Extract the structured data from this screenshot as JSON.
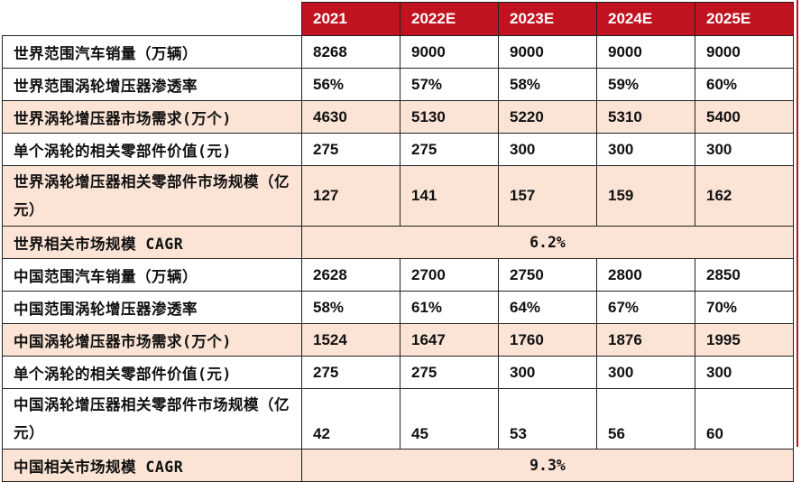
{
  "header": [
    "2021",
    "2022E",
    "2023E",
    "2024E",
    "2025E"
  ],
  "rows": [
    {
      "label": "世界范围汽车销量（万辆）",
      "values": [
        "8268",
        "9000",
        "9000",
        "9000",
        "9000"
      ]
    },
    {
      "label": "世界范围涡轮增压器渗透率",
      "values": [
        "56%",
        "57%",
        "58%",
        "59%",
        "60%"
      ]
    },
    {
      "label": "世界涡轮增压器市场需求(万个)",
      "values": [
        "4630",
        "5130",
        "5220",
        "5310",
        "5400"
      ]
    },
    {
      "label": "单个涡轮的相关零部件价值(元)",
      "values": [
        "275",
        "275",
        "300",
        "300",
        "300"
      ]
    },
    {
      "label": "世界涡轮增压器相关零部件市场规模（亿元）",
      "values": [
        "127",
        "141",
        "157",
        "159",
        "162"
      ]
    },
    {
      "label": "世界相关市场规模 CAGR",
      "merged": "6.2%"
    },
    {
      "label": "中国范围汽车销量（万辆）",
      "values": [
        "2628",
        "2700",
        "2750",
        "2800",
        "2850"
      ]
    },
    {
      "label": "中国范围涡轮增压器渗透率",
      "values": [
        "58%",
        "61%",
        "64%",
        "67%",
        "70%"
      ]
    },
    {
      "label": "中国涡轮增压器市场需求(万个)",
      "values": [
        "1524",
        "1647",
        "1760",
        "1876",
        "1995"
      ]
    },
    {
      "label": "单个涡轮的相关零部件价值(元)",
      "values": [
        "275",
        "275",
        "300",
        "300",
        "300"
      ]
    },
    {
      "label": "中国涡轮增压器相关零部件市场规模（亿元）",
      "values": [
        "42",
        "45",
        "53",
        "56",
        "60"
      ]
    },
    {
      "label": "中国相关市场规模 CAGR",
      "merged": "9.3%"
    }
  ],
  "colors": {
    "header_bg": "#c1121f",
    "shade_bg": "#fbe4d5"
  }
}
